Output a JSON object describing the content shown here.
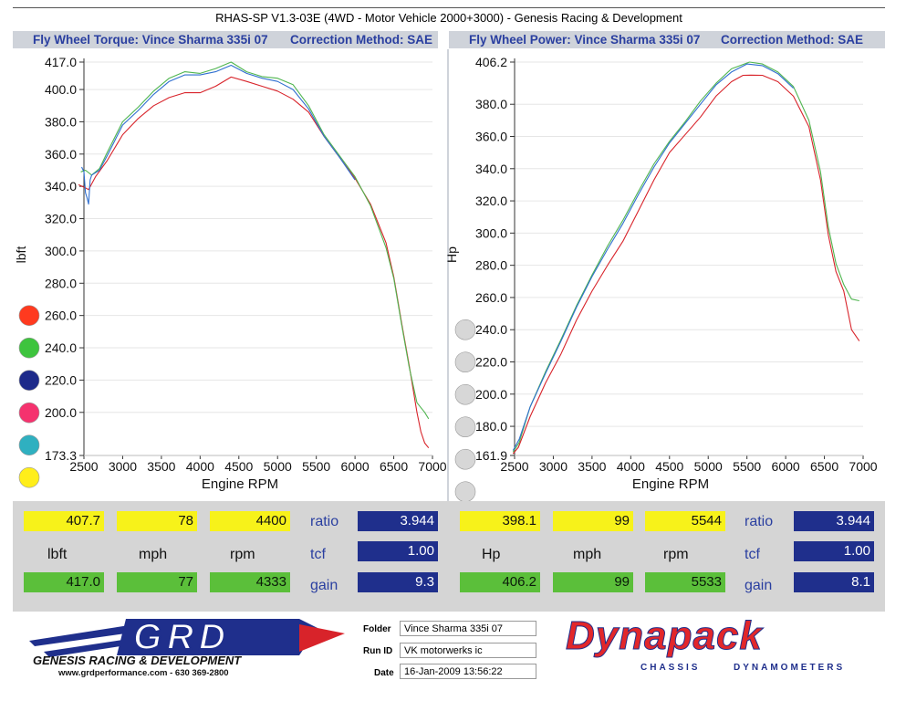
{
  "title": "RHAS-SP V1.3-03E  (4WD - Motor Vehicle 2000+3000) - Genesis Racing & Development",
  "headers": {
    "left_title": "Fly Wheel Torque: Vince Sharma 335i 07",
    "left_method": "Correction Method: SAE",
    "right_title": "Fly Wheel Power: Vince Sharma 335i 07",
    "right_method": "Correction Method: SAE"
  },
  "series_colors": {
    "red": "#d8232a",
    "green": "#4fb54f",
    "blue": "#2f6fd0"
  },
  "dot_colors": {
    "left": [
      "#ff3a1f",
      "#3ec43e",
      "#1d2a8a",
      "#f5326e",
      "#2fb0c0",
      "#ffee1a"
    ],
    "right": [
      "#d7d7d7",
      "#d7d7d7",
      "#d7d7d7",
      "#d7d7d7",
      "#d7d7d7",
      "#d7d7d7"
    ]
  },
  "chart_data": [
    {
      "type": "line",
      "title": "Fly Wheel Torque: Vince Sharma 335i 07",
      "xlabel": "Engine RPM",
      "ylabel": "lbft",
      "xlim": [
        2500,
        7000
      ],
      "ylim": [
        173.3,
        417.0
      ],
      "xticks": [
        "2500",
        "3000",
        "3500",
        "4000",
        "4500",
        "5000",
        "5500",
        "6000",
        "6500",
        "7000"
      ],
      "yticks": [
        "417.0",
        "400.0",
        "380.0",
        "360.0",
        "340.0",
        "320.0",
        "300.0",
        "280.0",
        "260.0",
        "240.0",
        "220.0",
        "200.0",
        "173.3"
      ],
      "grid": true,
      "series": [
        {
          "color": "red",
          "x": [
            2430,
            2520,
            2560,
            2650,
            2800,
            3000,
            3200,
            3400,
            3600,
            3800,
            4000,
            4200,
            4400,
            4600,
            4800,
            5000,
            5200,
            5400,
            5600,
            5800,
            6000,
            6200,
            6400,
            6500,
            6600,
            6700,
            6800,
            6850,
            6900,
            6950
          ],
          "y": [
            341,
            339,
            338,
            346,
            356,
            372,
            382,
            390,
            395,
            398,
            398,
            402,
            407.7,
            405,
            402,
            399,
            394,
            386,
            371,
            358,
            345,
            329,
            305,
            284,
            256,
            229,
            200,
            188,
            181,
            178
          ]
        },
        {
          "color": "green",
          "x": [
            2460,
            2520,
            2600,
            2700,
            2800,
            3000,
            3200,
            3400,
            3600,
            3800,
            4000,
            4200,
            4400,
            4600,
            4800,
            5000,
            5200,
            5400,
            5600,
            5800,
            6000,
            6200,
            6400,
            6500,
            6600,
            6700,
            6800,
            6900,
            6950
          ],
          "y": [
            349,
            350,
            347,
            351,
            361,
            380,
            389,
            399,
            407,
            411,
            410,
            413,
            417,
            411,
            408,
            407,
            403,
            390,
            372,
            359,
            346,
            328,
            302,
            283,
            255,
            228,
            206,
            200,
            196
          ]
        },
        {
          "color": "blue",
          "x": [
            2470,
            2500,
            2520,
            2540,
            2560,
            2580,
            2600,
            2700,
            2800,
            3000,
            3200,
            3400,
            3600,
            3800,
            4000,
            4200,
            4400,
            4600,
            4800,
            5000,
            5200,
            5400,
            5600,
            5800,
            6000
          ],
          "y": [
            352,
            349,
            336,
            333,
            329,
            344,
            347,
            350,
            359,
            378,
            387,
            397,
            405,
            409,
            409,
            411,
            415,
            410,
            407,
            405,
            400,
            388,
            371,
            358,
            344
          ]
        }
      ],
      "readouts": {
        "current": {
          "value": "407.7",
          "mph": "78",
          "rpm": "4400"
        },
        "units": {
          "value": "lbft",
          "mph": "mph",
          "rpm": "rpm"
        },
        "max": {
          "value": "417.0",
          "mph": "77",
          "rpm": "4333"
        },
        "ratio": {
          "label": "ratio",
          "value": "3.944"
        },
        "tcf": {
          "label": "tcf",
          "value": "1.00"
        },
        "gain": {
          "label": "gain",
          "value": "9.3"
        }
      }
    },
    {
      "type": "line",
      "title": "Fly Wheel Power: Vince Sharma 335i 07",
      "xlabel": "Engine RPM",
      "ylabel": "Hp",
      "xlim": [
        2500,
        7000
      ],
      "ylim": [
        161.9,
        406.2
      ],
      "xticks": [
        "2500",
        "3000",
        "3500",
        "4000",
        "4500",
        "5000",
        "5500",
        "6000",
        "6500",
        "7000"
      ],
      "yticks": [
        "406.2",
        "380.0",
        "360.0",
        "340.0",
        "320.0",
        "300.0",
        "280.0",
        "260.0",
        "240.0",
        "220.0",
        "200.0",
        "180.0",
        "161.9"
      ],
      "grid": true,
      "series": [
        {
          "color": "red",
          "x": [
            2480,
            2550,
            2700,
            2900,
            3100,
            3300,
            3500,
            3700,
            3900,
            4100,
            4300,
            4500,
            4700,
            4900,
            5100,
            5300,
            5450,
            5550,
            5700,
            5900,
            6100,
            6300,
            6450,
            6550,
            6650,
            6750,
            6850,
            6950
          ],
          "y": [
            163,
            167,
            186,
            207,
            225,
            246,
            264,
            280,
            295,
            314,
            333,
            350,
            361,
            372,
            385,
            394,
            398,
            398.1,
            398,
            394,
            385,
            366,
            333,
            299,
            276,
            264,
            240,
            233
          ]
        },
        {
          "color": "green",
          "x": [
            2480,
            2560,
            2700,
            2900,
            3100,
            3300,
            3500,
            3700,
            3900,
            4100,
            4300,
            4500,
            4700,
            4900,
            5100,
            5300,
            5533,
            5700,
            5900,
            6100,
            6300,
            6450,
            6550,
            6650,
            6750,
            6850,
            6950
          ],
          "y": [
            164,
            170,
            192,
            214,
            234,
            255,
            274,
            292,
            308,
            326,
            343,
            357,
            369,
            382,
            393,
            402,
            406.2,
            405,
            400,
            391,
            370,
            338,
            304,
            281,
            268,
            259,
            258
          ]
        },
        {
          "color": "blue",
          "x": [
            2480,
            2560,
            2700,
            2900,
            3100,
            3300,
            3500,
            3700,
            3900,
            4100,
            4300,
            4500,
            4700,
            4900,
            5100,
            5300,
            5500,
            5700,
            5900,
            6100
          ],
          "y": [
            165,
            172,
            192,
            213,
            233,
            254,
            273,
            290,
            306,
            324,
            341,
            356,
            368,
            380,
            392,
            400,
            405,
            404,
            399,
            390
          ]
        }
      ],
      "readouts": {
        "current": {
          "value": "398.1",
          "mph": "99",
          "rpm": "5544"
        },
        "units": {
          "value": "Hp",
          "mph": "mph",
          "rpm": "rpm"
        },
        "max": {
          "value": "406.2",
          "mph": "99",
          "rpm": "5533"
        },
        "ratio": {
          "label": "ratio",
          "value": "3.944"
        },
        "tcf": {
          "label": "tcf",
          "value": "1.00"
        },
        "gain": {
          "label": "gain",
          "value": "8.1"
        }
      }
    }
  ],
  "footer": {
    "logo_left": {
      "mark": "GRD",
      "name": "GENESIS RACING & DEVELOPMENT",
      "web": "www.grdperformance.com - 630 369-2800"
    },
    "folder_label": "Folder",
    "folder_value": "Vince Sharma 335i 07",
    "runid_label": "Run ID",
    "runid_value": "VK motorwerks ic",
    "date_label": "Date",
    "date_value": "16-Jan-2009  13:56:22",
    "logo_right": {
      "mark": "Dynapack",
      "tagline_left": "CHASSIS",
      "tagline_right": "DYNAMOMETERS"
    }
  }
}
